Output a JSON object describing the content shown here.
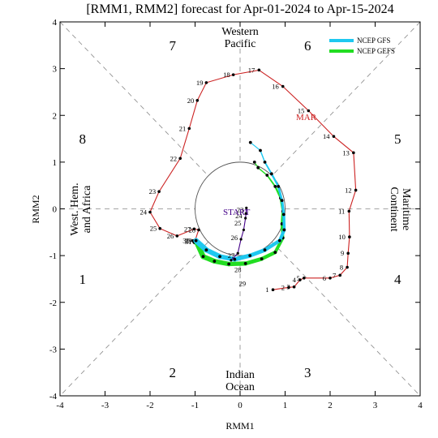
{
  "chart_data": {
    "type": "line",
    "title": "[RMM1, RMM2] forecast for Apr-01-2024 to Apr-15-2024",
    "xlabel": "RMM1",
    "ylabel": "RMM2",
    "xlim": [
      -4,
      4
    ],
    "ylim": [
      -4,
      4
    ],
    "x_ticks": [
      -4,
      -3,
      -2,
      -1,
      0,
      1,
      2,
      3,
      4
    ],
    "y_ticks": [
      -4,
      -3,
      -2,
      -1,
      0,
      1,
      2,
      3,
      4
    ],
    "phase_numbers": [
      {
        "label": "1",
        "x": -3.5,
        "y": -1.5
      },
      {
        "label": "2",
        "x": -1.5,
        "y": -3.5
      },
      {
        "label": "3",
        "x": 1.5,
        "y": -3.5
      },
      {
        "label": "4",
        "x": 3.5,
        "y": -1.5
      },
      {
        "label": "5",
        "x": 3.5,
        "y": 1.5
      },
      {
        "label": "6",
        "x": 1.5,
        "y": 3.5
      },
      {
        "label": "7",
        "x": -1.5,
        "y": 3.5
      },
      {
        "label": "8",
        "x": -3.5,
        "y": 1.5
      }
    ],
    "region_labels": {
      "western_pacific": [
        "Western",
        "Pacific"
      ],
      "indian_ocean": [
        "Indian",
        "Ocean"
      ],
      "west_hem": [
        "West. Hem.",
        "and Africa"
      ],
      "maritime": [
        "Maritime",
        "Continent"
      ]
    },
    "month_label": "MAR",
    "start_label": "START",
    "colors": {
      "observed": "#cc2222",
      "start_track": "#440088",
      "gfs": "#1ec8f0",
      "gefs": "#22dd22",
      "guide": "#888888",
      "unit_circle": "#555555"
    },
    "legend": [
      {
        "name": "NCEP GFS",
        "color": "#1ec8f0"
      },
      {
        "name": "NCEP GEFS",
        "color": "#22dd22"
      }
    ],
    "observed_march": [
      {
        "day": "1",
        "x": 0.73,
        "y": -1.73
      },
      {
        "day": "2",
        "x": 1.08,
        "y": -1.68
      },
      {
        "day": "3",
        "x": 1.2,
        "y": -1.67
      },
      {
        "day": "4",
        "x": 1.33,
        "y": -1.52
      },
      {
        "day": "5",
        "x": 1.42,
        "y": -1.48
      },
      {
        "day": "6",
        "x": 2.0,
        "y": -1.48
      },
      {
        "day": "7",
        "x": 2.22,
        "y": -1.42
      },
      {
        "day": "8",
        "x": 2.38,
        "y": -1.25
      },
      {
        "day": "9",
        "x": 2.4,
        "y": -0.95
      },
      {
        "day": "10",
        "x": 2.43,
        "y": -0.6
      },
      {
        "day": "11",
        "x": 2.42,
        "y": -0.05
      },
      {
        "day": "12",
        "x": 2.57,
        "y": 0.4
      },
      {
        "day": "13",
        "x": 2.52,
        "y": 1.2
      },
      {
        "day": "14",
        "x": 2.08,
        "y": 1.55
      },
      {
        "day": "15",
        "x": 1.52,
        "y": 2.1
      },
      {
        "day": "16",
        "x": 0.95,
        "y": 2.62
      },
      {
        "day": "17",
        "x": 0.42,
        "y": 2.97
      },
      {
        "day": "18",
        "x": -0.15,
        "y": 2.87
      },
      {
        "day": "19",
        "x": -0.75,
        "y": 2.7
      },
      {
        "day": "20",
        "x": -0.95,
        "y": 2.32
      },
      {
        "day": "21",
        "x": -1.13,
        "y": 1.72
      },
      {
        "day": "22",
        "x": -1.33,
        "y": 1.08
      },
      {
        "day": "23",
        "x": -1.8,
        "y": 0.37
      },
      {
        "day": "24",
        "x": -2.0,
        "y": -0.07
      },
      {
        "day": "25",
        "x": -1.78,
        "y": -0.42
      },
      {
        "day": "26",
        "x": -1.4,
        "y": -0.58
      },
      {
        "day": "27",
        "x": -1.02,
        "y": -0.43
      },
      {
        "day": "28",
        "x": -0.92,
        "y": -0.45
      },
      {
        "day": "29",
        "x": -1.0,
        "y": -0.68
      },
      {
        "day": "30",
        "x": -1.05,
        "y": -0.68
      },
      {
        "day": "31",
        "x": -1.0,
        "y": -0.7
      }
    ],
    "observed_april": [
      {
        "day": "23",
        "x": 0.15,
        "y": -0.02
      },
      {
        "day": "24",
        "x": 0.12,
        "y": -0.15
      },
      {
        "day": "25",
        "x": 0.1,
        "y": -0.3
      },
      {
        "day": "26",
        "x": 0.02,
        "y": -0.62
      },
      {
        "day": "27",
        "x": -0.05,
        "y": -1.0
      },
      {
        "day": "28",
        "x": 0.1,
        "y": -1.3
      },
      {
        "day": "29",
        "x": 0.2,
        "y": -1.6
      }
    ],
    "series": [
      {
        "name": "NCEP GFS",
        "points": [
          {
            "x": -0.98,
            "y": -0.68
          },
          {
            "x": -0.75,
            "y": -0.88
          },
          {
            "x": -0.45,
            "y": -1.02
          },
          {
            "x": -0.12,
            "y": -1.08
          },
          {
            "x": 0.22,
            "y": -1.0
          },
          {
            "x": 0.55,
            "y": -0.88
          },
          {
            "x": 0.88,
            "y": -0.68
          },
          {
            "x": 0.98,
            "y": -0.45
          },
          {
            "x": 0.97,
            "y": -0.12
          },
          {
            "x": 0.93,
            "y": 0.18
          },
          {
            "x": 0.85,
            "y": 0.48
          },
          {
            "x": 0.7,
            "y": 0.75
          },
          {
            "x": 0.55,
            "y": 1.0
          },
          {
            "x": 0.45,
            "y": 1.25
          },
          {
            "x": 0.23,
            "y": 1.42
          }
        ]
      },
      {
        "name": "NCEP GEFS",
        "points": [
          {
            "x": -0.97,
            "y": -0.7
          },
          {
            "x": -0.82,
            "y": -1.02
          },
          {
            "x": -0.57,
            "y": -1.12
          },
          {
            "x": -0.25,
            "y": -1.18
          },
          {
            "x": 0.12,
            "y": -1.17
          },
          {
            "x": 0.48,
            "y": -1.07
          },
          {
            "x": 0.78,
            "y": -0.93
          },
          {
            "x": 0.95,
            "y": -0.62
          },
          {
            "x": 0.93,
            "y": -0.32
          },
          {
            "x": 0.95,
            "y": -0.05
          },
          {
            "x": 0.9,
            "y": 0.23
          },
          {
            "x": 0.78,
            "y": 0.48
          },
          {
            "x": 0.6,
            "y": 0.72
          },
          {
            "x": 0.4,
            "y": 0.88
          },
          {
            "x": 0.32,
            "y": 1.0
          }
        ]
      }
    ],
    "start_track": [
      {
        "x": 0.14,
        "y": 0.02
      },
      {
        "x": 0.13,
        "y": -0.1
      },
      {
        "x": 0.12,
        "y": -0.2
      },
      {
        "x": 0.08,
        "y": -0.45
      },
      {
        "x": 0.02,
        "y": -0.65
      },
      {
        "x": -0.05,
        "y": -0.95
      },
      {
        "x": -0.2,
        "y": -1.1
      }
    ]
  }
}
